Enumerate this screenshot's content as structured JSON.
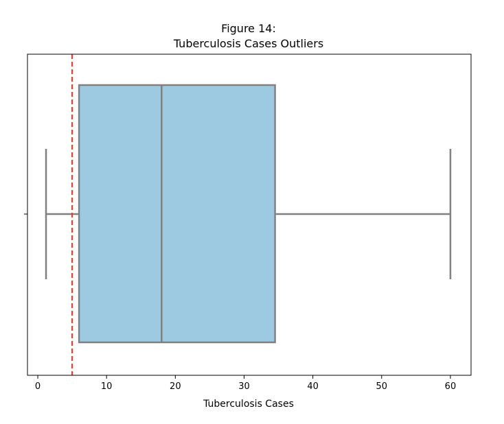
{
  "chart_data": {
    "type": "box",
    "title": "Figure 14:",
    "subtitle": "Tuberculosis Cases Outliers",
    "xlabel": "Tuberculosis Cases",
    "ylabel": "",
    "xlim": [
      -1.5,
      63
    ],
    "x_ticks": [
      0,
      10,
      20,
      30,
      40,
      50,
      60
    ],
    "x_tick_labels": [
      "0",
      "10",
      "20",
      "30",
      "40",
      "50",
      "60"
    ],
    "grid": false,
    "orientation": "horizontal",
    "box": {
      "whisker_low": 1.2,
      "q1": 6.0,
      "median": 18.0,
      "q3": 34.5,
      "whisker_high": 60.0
    },
    "reference_line": {
      "x": 5,
      "style": "dashed"
    },
    "colors": {
      "box_fill": "#9ecae1",
      "box_edge": "#808080",
      "reference_line": "#e8402f",
      "axes": "#000000"
    }
  }
}
